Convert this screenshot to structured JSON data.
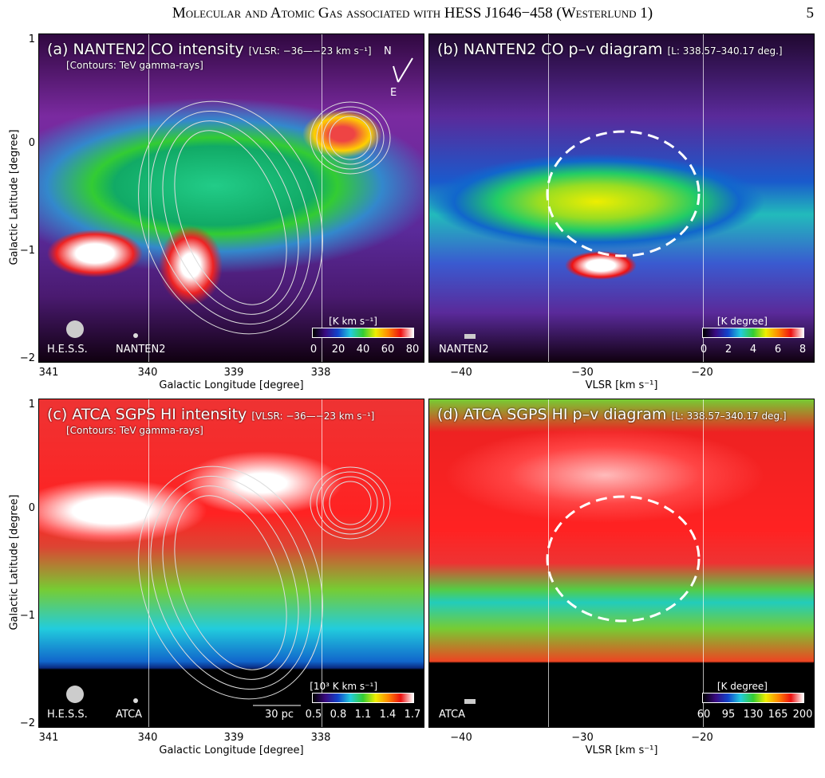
{
  "header": {
    "title": "Molecular and Atomic Gas associated with HESS J1646−458 (Westerlund 1)",
    "page": "5"
  },
  "y_axis": {
    "label": "Galactic Latitude [degree]",
    "ticks": [
      "1",
      "0",
      "−1",
      "−2"
    ]
  },
  "panels": [
    {
      "title": "(a) NANTEN2 CO intensity",
      "range": "[VLSR: −36—−23 km s⁻¹]",
      "note": "[Contours: TeV gamma-rays]",
      "beams": [
        "H.E.S.S.",
        "NANTEN2"
      ],
      "colorbar_unit": "[K km s⁻¹]",
      "colorbar_ticks": [
        "0",
        "20",
        "40",
        "60",
        "80"
      ],
      "compass": [
        "N",
        "E"
      ],
      "x_ticks": [
        "341",
        "340",
        "339",
        "338"
      ],
      "x_label": "Galactic Longitude [degree]"
    },
    {
      "title": "(b) NANTEN2 CO p–v diagram",
      "range": "[L: 338.57–340.17 deg.]",
      "beams": [
        "NANTEN2"
      ],
      "colorbar_unit": "[K degree]",
      "colorbar_ticks": [
        "0",
        "2",
        "4",
        "6",
        "8"
      ],
      "x_ticks": [
        "−40",
        "−30",
        "−20"
      ],
      "x_label": "VLSR [km s⁻¹]"
    },
    {
      "title": "(c) ATCA SGPS HI intensity",
      "range": "[VLSR: −36—−23 km s⁻¹]",
      "note": "[Contours: TeV gamma-rays]",
      "beams": [
        "H.E.S.S.",
        "ATCA"
      ],
      "scale_bar": "30 pc",
      "colorbar_unit": "[10³ K km s⁻¹]",
      "colorbar_ticks": [
        "0.5",
        "0.8",
        "1.1",
        "1.4",
        "1.7"
      ],
      "x_ticks": [
        "341",
        "340",
        "339",
        "338"
      ],
      "x_label": "Galactic Longitude [degree]"
    },
    {
      "title": "(d) ATCA SGPS HI p–v diagram",
      "range": "[L: 338.57–340.17 deg.]",
      "beams": [
        "ATCA"
      ],
      "colorbar_unit": "[K degree]",
      "colorbar_ticks": [
        "60",
        "95",
        "130",
        "165",
        "200"
      ],
      "x_ticks": [
        "−40",
        "−30",
        "−20"
      ],
      "x_label": "VLSR [km s⁻¹]"
    }
  ]
}
